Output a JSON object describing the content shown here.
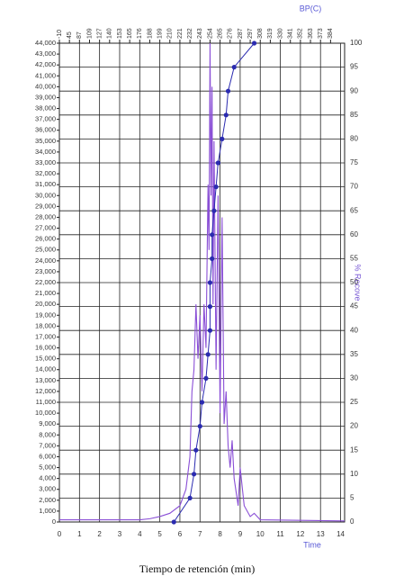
{
  "chart_data": {
    "type": "line",
    "x_label": "Time",
    "caption": "Tiempo de retención (min)",
    "y2_label": "% Recove",
    "top_label": "BP(C)",
    "xlim": [
      0,
      14.2
    ],
    "xticks": [
      0,
      1,
      2,
      3,
      4,
      5,
      6,
      7,
      8,
      9,
      10,
      11,
      12,
      13,
      14
    ],
    "top_ticks": [
      {
        "value": 0,
        "label": "-10"
      },
      {
        "value": 0.5,
        "label": "45"
      },
      {
        "value": 1,
        "label": "87"
      },
      {
        "value": 1.5,
        "label": "109"
      },
      {
        "value": 2,
        "label": "127"
      },
      {
        "value": 2.5,
        "label": "140"
      },
      {
        "value": 3,
        "label": "153"
      },
      {
        "value": 3.5,
        "label": "165"
      },
      {
        "value": 4,
        "label": "176"
      },
      {
        "value": 4.5,
        "label": "188"
      },
      {
        "value": 5,
        "label": "199"
      },
      {
        "value": 5.5,
        "label": "210"
      },
      {
        "value": 6,
        "label": "221"
      },
      {
        "value": 6.5,
        "label": "232"
      },
      {
        "value": 7,
        "label": "243"
      },
      {
        "value": 7.5,
        "label": "254"
      },
      {
        "value": 8,
        "label": "265"
      },
      {
        "value": 8.5,
        "label": "276"
      },
      {
        "value": 9,
        "label": "287"
      },
      {
        "value": 9.5,
        "label": "297"
      },
      {
        "value": 10,
        "label": "308"
      },
      {
        "value": 10.5,
        "label": "319"
      },
      {
        "value": 11,
        "label": "330"
      },
      {
        "value": 11.5,
        "label": "341"
      },
      {
        "value": 12,
        "label": "352"
      },
      {
        "value": 12.5,
        "label": "363"
      },
      {
        "value": 13,
        "label": "373"
      },
      {
        "value": 13.5,
        "label": "384"
      }
    ],
    "ylim": [
      0,
      44000
    ],
    "yticks": [
      0,
      {
        "value": 1000,
        "label": "1,000"
      },
      {
        "value": 2000,
        "label": "2,000"
      },
      {
        "value": 3000,
        "label": "3,000"
      },
      {
        "value": 4000,
        "label": "4,000"
      },
      {
        "value": 5000,
        "label": "5,000"
      },
      {
        "value": 6000,
        "label": "6,000"
      },
      {
        "value": 7000,
        "label": "7,000"
      },
      {
        "value": 8000,
        "label": "8,000"
      },
      {
        "value": 9000,
        "label": "9,000"
      },
      {
        "value": 10000,
        "label": "10,000"
      },
      {
        "value": 11000,
        "label": "11,000"
      },
      {
        "value": 12000,
        "label": "12,000"
      },
      {
        "value": 13000,
        "label": "13,000"
      },
      {
        "value": 14000,
        "label": "14,000"
      },
      {
        "value": 15000,
        "label": "15,000"
      },
      {
        "value": 16000,
        "label": "16,000"
      },
      {
        "value": 17000,
        "label": "17,000"
      },
      {
        "value": 18000,
        "label": "18,000"
      },
      {
        "value": 19000,
        "label": "19,000"
      },
      {
        "value": 20000,
        "label": "20,000"
      },
      {
        "value": 21000,
        "label": "21,000"
      },
      {
        "value": 22000,
        "label": "22,000"
      },
      {
        "value": 23000,
        "label": "23,000"
      },
      {
        "value": 24000,
        "label": "24,000"
      },
      {
        "value": 25000,
        "label": "25,000"
      },
      {
        "value": 26000,
        "label": "26,000"
      },
      {
        "value": 27000,
        "label": "27,000"
      },
      {
        "value": 28000,
        "label": "28,000"
      },
      {
        "value": 29000,
        "label": "29,000"
      },
      {
        "value": 30000,
        "label": "30,000"
      },
      {
        "value": 31000,
        "label": "31,000"
      },
      {
        "value": 32000,
        "label": "32,000"
      },
      {
        "value": 33000,
        "label": "33,000"
      },
      {
        "value": 34000,
        "label": "34,000"
      },
      {
        "value": 35000,
        "label": "35,000"
      },
      {
        "value": 36000,
        "label": "36,000"
      },
      {
        "value": 37000,
        "label": "37,000"
      },
      {
        "value": 38000,
        "label": "38,000"
      },
      {
        "value": 39000,
        "label": "39,000"
      },
      {
        "value": 40000,
        "label": "40,000"
      },
      {
        "value": 41000,
        "label": "41,000"
      },
      {
        "value": 42000,
        "label": "42,000"
      },
      {
        "value": 43000,
        "label": "43,000"
      },
      {
        "value": 44000,
        "label": "44,000"
      }
    ],
    "y2lim": [
      0,
      100
    ],
    "y2ticks": [
      0,
      5,
      10,
      15,
      20,
      25,
      30,
      35,
      40,
      45,
      50,
      55,
      60,
      65,
      70,
      75,
      80,
      85,
      90,
      95,
      100
    ],
    "grid": true,
    "series": [
      {
        "color": "#8a4fd6",
        "x": [
          0,
          4,
          4.5,
          5,
          5.5,
          6,
          6.3,
          6.5,
          6.6,
          6.7,
          6.8,
          6.9,
          7.0,
          7.1,
          7.2,
          7.3,
          7.4,
          7.45,
          7.5,
          7.55,
          7.6,
          7.65,
          7.7,
          7.8,
          7.9,
          8.0,
          8.1,
          8.2,
          8.3,
          8.4,
          8.5,
          8.6,
          8.7,
          8.9,
          9.0,
          9.2,
          9.5,
          9.7,
          10,
          14.2
        ],
        "values": [
          200,
          200,
          300,
          500,
          800,
          1500,
          3000,
          6000,
          12000,
          14000,
          20000,
          15000,
          19000,
          12000,
          20000,
          16000,
          31000,
          25000,
          44000,
          30000,
          40000,
          20000,
          35000,
          14000,
          30000,
          10000,
          28000,
          9000,
          12000,
          7000,
          5000,
          7500,
          4000,
          1500,
          5000,
          1500,
          500,
          800,
          200,
          100
        ]
      },
      {
        "color": "#2b2bb0",
        "axis": "y2",
        "x": [
          5.7,
          6.5,
          6.7,
          6.8,
          7.0,
          7.1,
          7.3,
          7.4,
          7.5,
          7.5,
          7.5,
          7.6,
          7.6,
          7.7,
          7.8,
          7.9,
          8.1,
          8.3,
          8.4,
          8.7,
          9.7
        ],
        "values": [
          0,
          5,
          10,
          15,
          20,
          25,
          30,
          35,
          40,
          45,
          50,
          55,
          60,
          65,
          70,
          75,
          80,
          85,
          90,
          95,
          100
        ]
      }
    ]
  }
}
